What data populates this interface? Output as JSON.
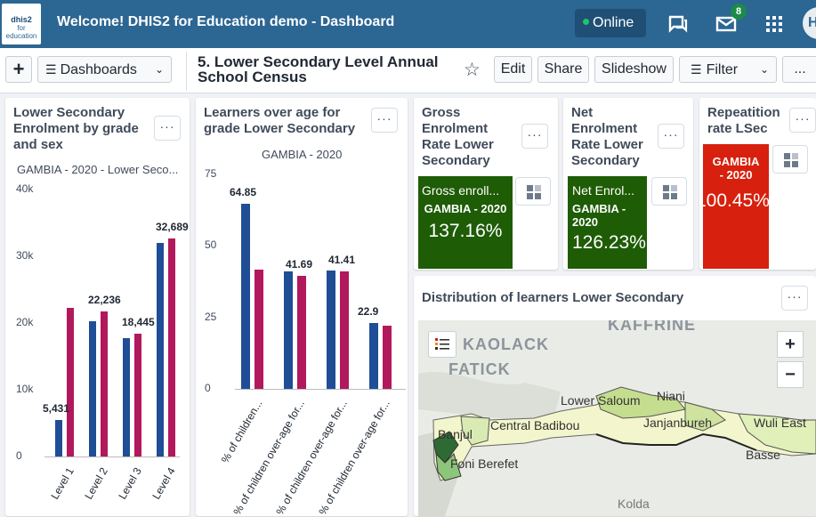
{
  "header": {
    "logo_line1": "dhis2",
    "logo_line2": "for education",
    "title": "Welcome! DHIS2 for Education demo - Dashboard",
    "online": "Online",
    "badge": "8",
    "profile_initial": "H"
  },
  "toolbar": {
    "add": "+",
    "dashboards": "Dashboards",
    "dashboard_title": "5. Lower Secondary Level Annual School Census",
    "edit": "Edit",
    "share": "Share",
    "slideshow": "Slideshow",
    "filter": "Filter",
    "more": "..."
  },
  "card1": {
    "title": "Lower Secondary Enrolment by grade and sex",
    "subtitle": "GAMBIA - 2020 - Lower Seco...",
    "more": "···"
  },
  "card2": {
    "title": "Learners over age for grade Lower Secondary",
    "subtitle": "GAMBIA - 2020",
    "more": "···"
  },
  "kpi1": {
    "title": "Gross Enrolment Rate Lower Secondary",
    "label": "Gross enroll...",
    "period": "GAMBIA - 2020",
    "value": "137.16%",
    "color": "#1e5c06",
    "more": "···"
  },
  "kpi2": {
    "title": "Net Enrolment Rate Lower Secondary",
    "label": "Net Enrol...",
    "period": "GAMBIA - 2020",
    "value": "126.23%",
    "color": "#1e5c06",
    "more": "···"
  },
  "kpi3": {
    "title": "Repeatition rate LSec",
    "period": "GAMBIA - 2020",
    "value": "100.45%",
    "color": "#d7200d",
    "more": "···"
  },
  "map": {
    "title": "Distribution of learners Lower Secondary",
    "more": "···",
    "zoom_in": "+",
    "zoom_out": "−",
    "places": [
      "KAFFRINE",
      "KAOLACK",
      "FATICK",
      "Lower Saloum",
      "Niani",
      "Central Badibou",
      "Janjanbureh",
      "Wuli East",
      "Banjul",
      "Foni Berefet",
      "Basse",
      "Kolda"
    ]
  },
  "chart_data": [
    {
      "type": "bar",
      "categories": [
        "Level 1",
        "Level 2",
        "Level 3",
        "Level 4"
      ],
      "series": [
        {
          "values": [
            5431,
            20300,
            17700,
            32000
          ],
          "color": "#1f4e96"
        },
        {
          "values": [
            22236,
            21700,
            18445,
            32689
          ],
          "color": "#b2185c"
        }
      ],
      "data_labels": [
        "5,431",
        "22,236",
        "18,445",
        "32,689"
      ],
      "ylim": [
        0,
        40000
      ],
      "yticks": [
        "0",
        "10k",
        "20k",
        "30k",
        "40k"
      ]
    },
    {
      "type": "bar",
      "categories": [
        "% of children...",
        "% of children over-age for...",
        "% of children over-age for...",
        "% of children over-age for..."
      ],
      "series": [
        {
          "values": [
            64.85,
            41.0,
            41.41,
            22.9
          ],
          "color": "#1f4e96"
        },
        {
          "values": [
            41.69,
            39.5,
            41.0,
            22.0
          ],
          "color": "#b2185c"
        }
      ],
      "data_labels": [
        "64.85",
        "41.69",
        "41.41",
        "22.9"
      ],
      "ylim": [
        0,
        75
      ],
      "yticks": [
        "0",
        "25",
        "50",
        "75"
      ]
    }
  ]
}
